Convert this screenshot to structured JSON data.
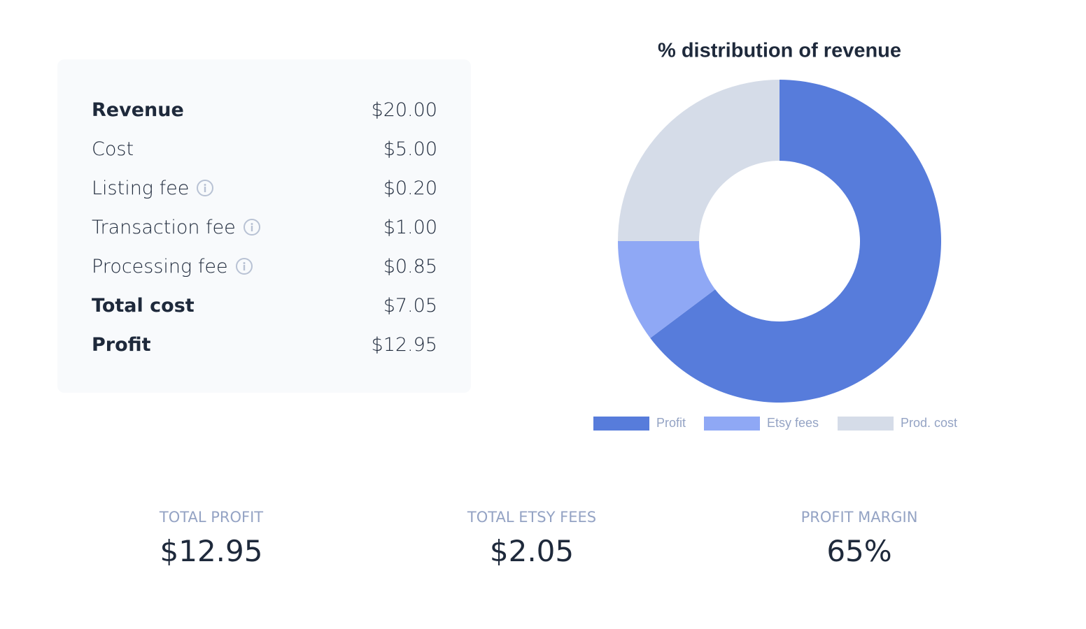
{
  "table": {
    "rows": [
      {
        "label": "Revenue",
        "value": "$20.00",
        "bold": true,
        "info": false
      },
      {
        "label": "Cost",
        "value": "$5.00",
        "bold": false,
        "info": false
      },
      {
        "label": "Listing fee",
        "value": "$0.20",
        "bold": false,
        "info": true
      },
      {
        "label": "Transaction fee",
        "value": "$1.00",
        "bold": false,
        "info": true
      },
      {
        "label": "Processing fee",
        "value": "$0.85",
        "bold": false,
        "info": true
      },
      {
        "label": "Total cost",
        "value": "$7.05",
        "bold": true,
        "info": false
      },
      {
        "label": "Profit",
        "value": "$12.95",
        "bold": true,
        "info": false
      }
    ]
  },
  "chart_data": {
    "type": "doughnut",
    "title": "% distribution of revenue",
    "categories": [
      "Profit",
      "Etsy fees",
      "Prod. cost"
    ],
    "values": [
      64.75,
      10.25,
      25
    ],
    "colors": [
      "#577cdb",
      "#8fa8f5",
      "#d5dce8"
    ]
  },
  "stats": [
    {
      "label": "TOTAL PROFIT",
      "value": "$12.95"
    },
    {
      "label": "TOTAL ETSY FEES",
      "value": "$2.05"
    },
    {
      "label": "PROFIT MARGIN",
      "value": "65%"
    }
  ]
}
